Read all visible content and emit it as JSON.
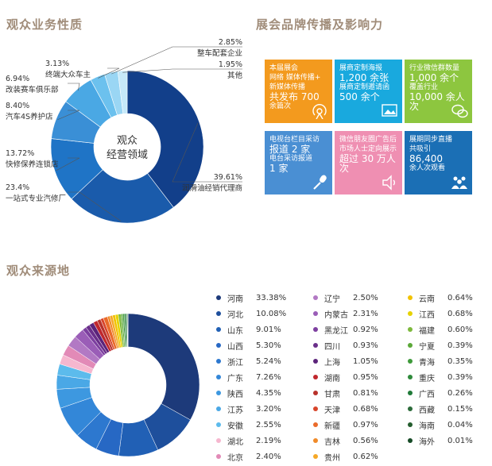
{
  "section1": {
    "title": "观众业务性质"
  },
  "section2": {
    "title": "展会品牌传播及影响力"
  },
  "section3": {
    "title": "观众来源地"
  },
  "donut1_center": [
    "观众",
    "经营领域"
  ],
  "tiles": [
    {
      "color": "#f39a1e",
      "lines": [
        "本届展会",
        "网络 媒体传播+",
        "新媒体传播",
        "共发布 700",
        "余篇次"
      ],
      "icon": "broadcast-icon"
    },
    {
      "color": "#19a9de",
      "lines": [
        "展商定制海报",
        "1,200 余张",
        "展商定制邀请函",
        "500 余个"
      ],
      "icon": "image-icon"
    },
    {
      "color": "#8dc63f",
      "lines": [
        "行业微信群数量",
        "1,000 余个",
        "覆盖行业",
        "10,000 余人次"
      ],
      "icon": "chat-icon"
    },
    {
      "color": "#4a8fd3",
      "lines": [
        "电视台栏目采访",
        "报道 2 家",
        "电台采访报道",
        "1 家"
      ],
      "icon": "microphone-icon"
    },
    {
      "color": "#ef8fb2",
      "lines": [
        "微信朋友圈广告后",
        "市场人士定向展示",
        "超过 30 万人次"
      ],
      "icon": "speaker-icon"
    },
    {
      "color": "#1b6fb5",
      "lines": [
        "展期同步直播",
        "共吸引",
        "86,400",
        "余人次观看"
      ],
      "icon": "people-icon"
    }
  ],
  "chart_data": [
    {
      "type": "pie",
      "title": "观众业务性质",
      "categories": [
        "润滑油经销代理商",
        "一站式专业汽修厂",
        "快修保养连锁店",
        "汽车4S养护店",
        "改装赛车俱乐部",
        "终端大众车主",
        "整车配套企业",
        "其他"
      ],
      "values": [
        39.61,
        23.4,
        13.72,
        8.4,
        6.94,
        3.13,
        2.85,
        1.95
      ],
      "labels": [
        "39.61%",
        "23.4%",
        "13.72%",
        "8.40%",
        "6.94%",
        "3.13%",
        "2.85%",
        "1.95%"
      ],
      "colors": [
        "#123f8a",
        "#1a5bab",
        "#1f74c6",
        "#3a8fd6",
        "#4aa8e4",
        "#6cc1ee",
        "#9ad6f4",
        "#c6e9f9"
      ]
    },
    {
      "type": "pie",
      "title": "观众来源地",
      "categories": [
        "河南",
        "河北",
        "山东",
        "山西",
        "浙江",
        "广东",
        "陕西",
        "江苏",
        "安徽",
        "湖北",
        "北京",
        "辽宁",
        "内蒙古",
        "黑龙江",
        "四川",
        "上海",
        "湖南",
        "甘肃",
        "天津",
        "新疆",
        "吉林",
        "贵州",
        "云南",
        "江西",
        "福建",
        "宁夏",
        "青海",
        "重庆",
        "广西",
        "西藏",
        "海南",
        "海外"
      ],
      "values": [
        33.38,
        10.08,
        9.01,
        5.3,
        5.24,
        7.26,
        4.35,
        3.2,
        2.55,
        2.19,
        2.4,
        2.5,
        2.31,
        0.92,
        0.93,
        1.05,
        0.95,
        0.81,
        0.68,
        0.97,
        0.56,
        0.62,
        0.64,
        0.68,
        0.6,
        0.39,
        0.35,
        0.39,
        0.26,
        0.15,
        0.04,
        0.01
      ],
      "labels": [
        "33.38%",
        "10.08%",
        "9.01%",
        "5.30%",
        "5.24%",
        "7.26%",
        "4.35%",
        "3.20%",
        "2.55%",
        "2.19%",
        "2.40%",
        "2.50%",
        "2.31%",
        "0.92%",
        "0.93%",
        "1.05%",
        "0.95%",
        "0.81%",
        "0.68%",
        "0.97%",
        "0.56%",
        "0.62%",
        "0.64%",
        "0.68%",
        "0.60%",
        "0.39%",
        "0.35%",
        "0.39%",
        "0.26%",
        "0.15%",
        "0.04%",
        "0.01%"
      ],
      "colors": [
        "#1d3a7a",
        "#1e4f9c",
        "#2160b5",
        "#2768c4",
        "#2d78cf",
        "#3387d8",
        "#3d98e0",
        "#4aa8e6",
        "#5cbbec",
        "#f6b7cf",
        "#e28ab7",
        "#b279c4",
        "#9a5db7",
        "#7d3fa0",
        "#6a2f8a",
        "#5b237a",
        "#c0272d",
        "#b8322b",
        "#d8452b",
        "#ea6b2b",
        "#f08a29",
        "#f5a827",
        "#f2c200",
        "#e6d200",
        "#7db93c",
        "#5ba838",
        "#3e9a3a",
        "#2e8a3a",
        "#1f7a38",
        "#2c6b3a",
        "#245d2e",
        "#164a26"
      ]
    }
  ]
}
